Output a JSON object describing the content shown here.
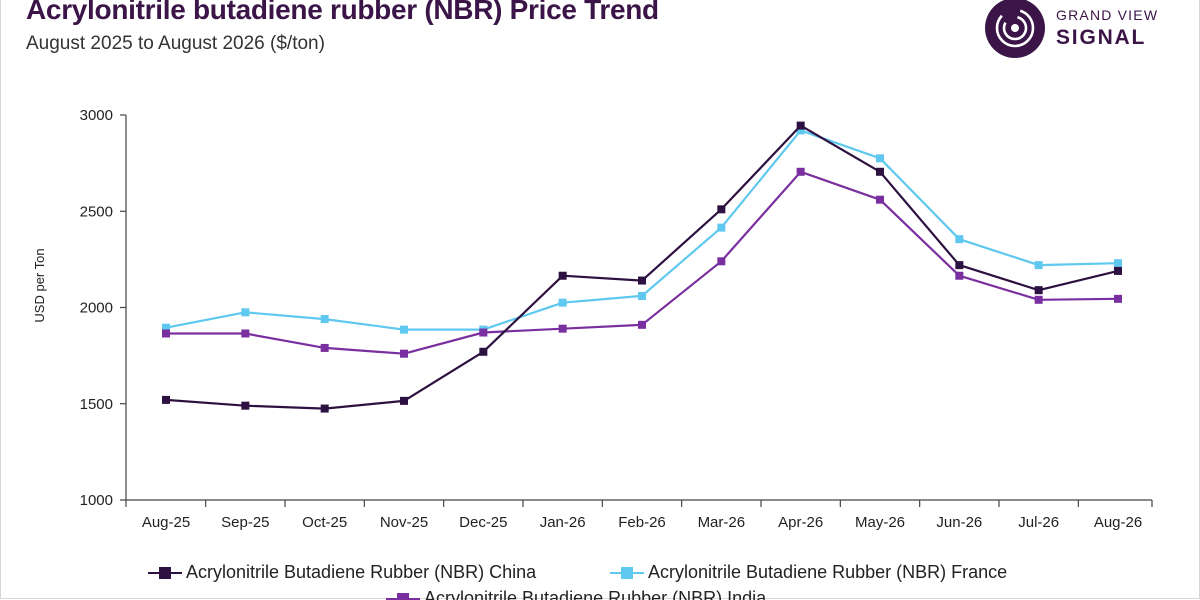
{
  "header": {
    "title": "Acrylonitrile butadiene rubber (NBR) Price Trend",
    "subtitle": "August 2025 to August 2026 ($/ton)"
  },
  "logo": {
    "line1": "GRAND VIEW",
    "line2": "SIGNAL",
    "icon": "grand-view-signal-logo-icon",
    "color": "#3b1548"
  },
  "chart_data": {
    "type": "line",
    "title": "Acrylonitrile butadiene rubber (NBR) Price Trend",
    "subtitle": "August 2025 to August 2026 ($/ton)",
    "xlabel": "",
    "ylabel": "USD per Ton",
    "ylim": [
      1000,
      3000
    ],
    "yticks": [
      1000,
      1500,
      2000,
      2500,
      3000
    ],
    "grid": false,
    "legend_position": "bottom",
    "categories": [
      "Aug-25",
      "Sep-25",
      "Oct-25",
      "Nov-25",
      "Dec-25",
      "Jan-26",
      "Feb-26",
      "Mar-26",
      "Apr-26",
      "May-26",
      "Jun-26",
      "Jul-26",
      "Aug-26"
    ],
    "series": [
      {
        "name": "Acrylonitrile Butadiene Rubber (NBR) China",
        "color": "#2d1140",
        "values": [
          1520,
          1490,
          1475,
          1515,
          1770,
          2165,
          2140,
          2510,
          2945,
          2705,
          2220,
          2090,
          2190
        ]
      },
      {
        "name": "Acrylonitrile Butadiene Rubber (NBR) France",
        "color": "#5ec8ef",
        "values": [
          1895,
          1975,
          1940,
          1885,
          1885,
          2025,
          2060,
          2415,
          2920,
          2775,
          2355,
          2220,
          2230
        ]
      },
      {
        "name": "Acrylonitrile Butadiene Rubber (NBR) India",
        "color": "#7a2fa0",
        "values": [
          1865,
          1865,
          1790,
          1760,
          1870,
          1890,
          1910,
          2240,
          2705,
          2560,
          2165,
          2040,
          2045
        ]
      }
    ]
  }
}
